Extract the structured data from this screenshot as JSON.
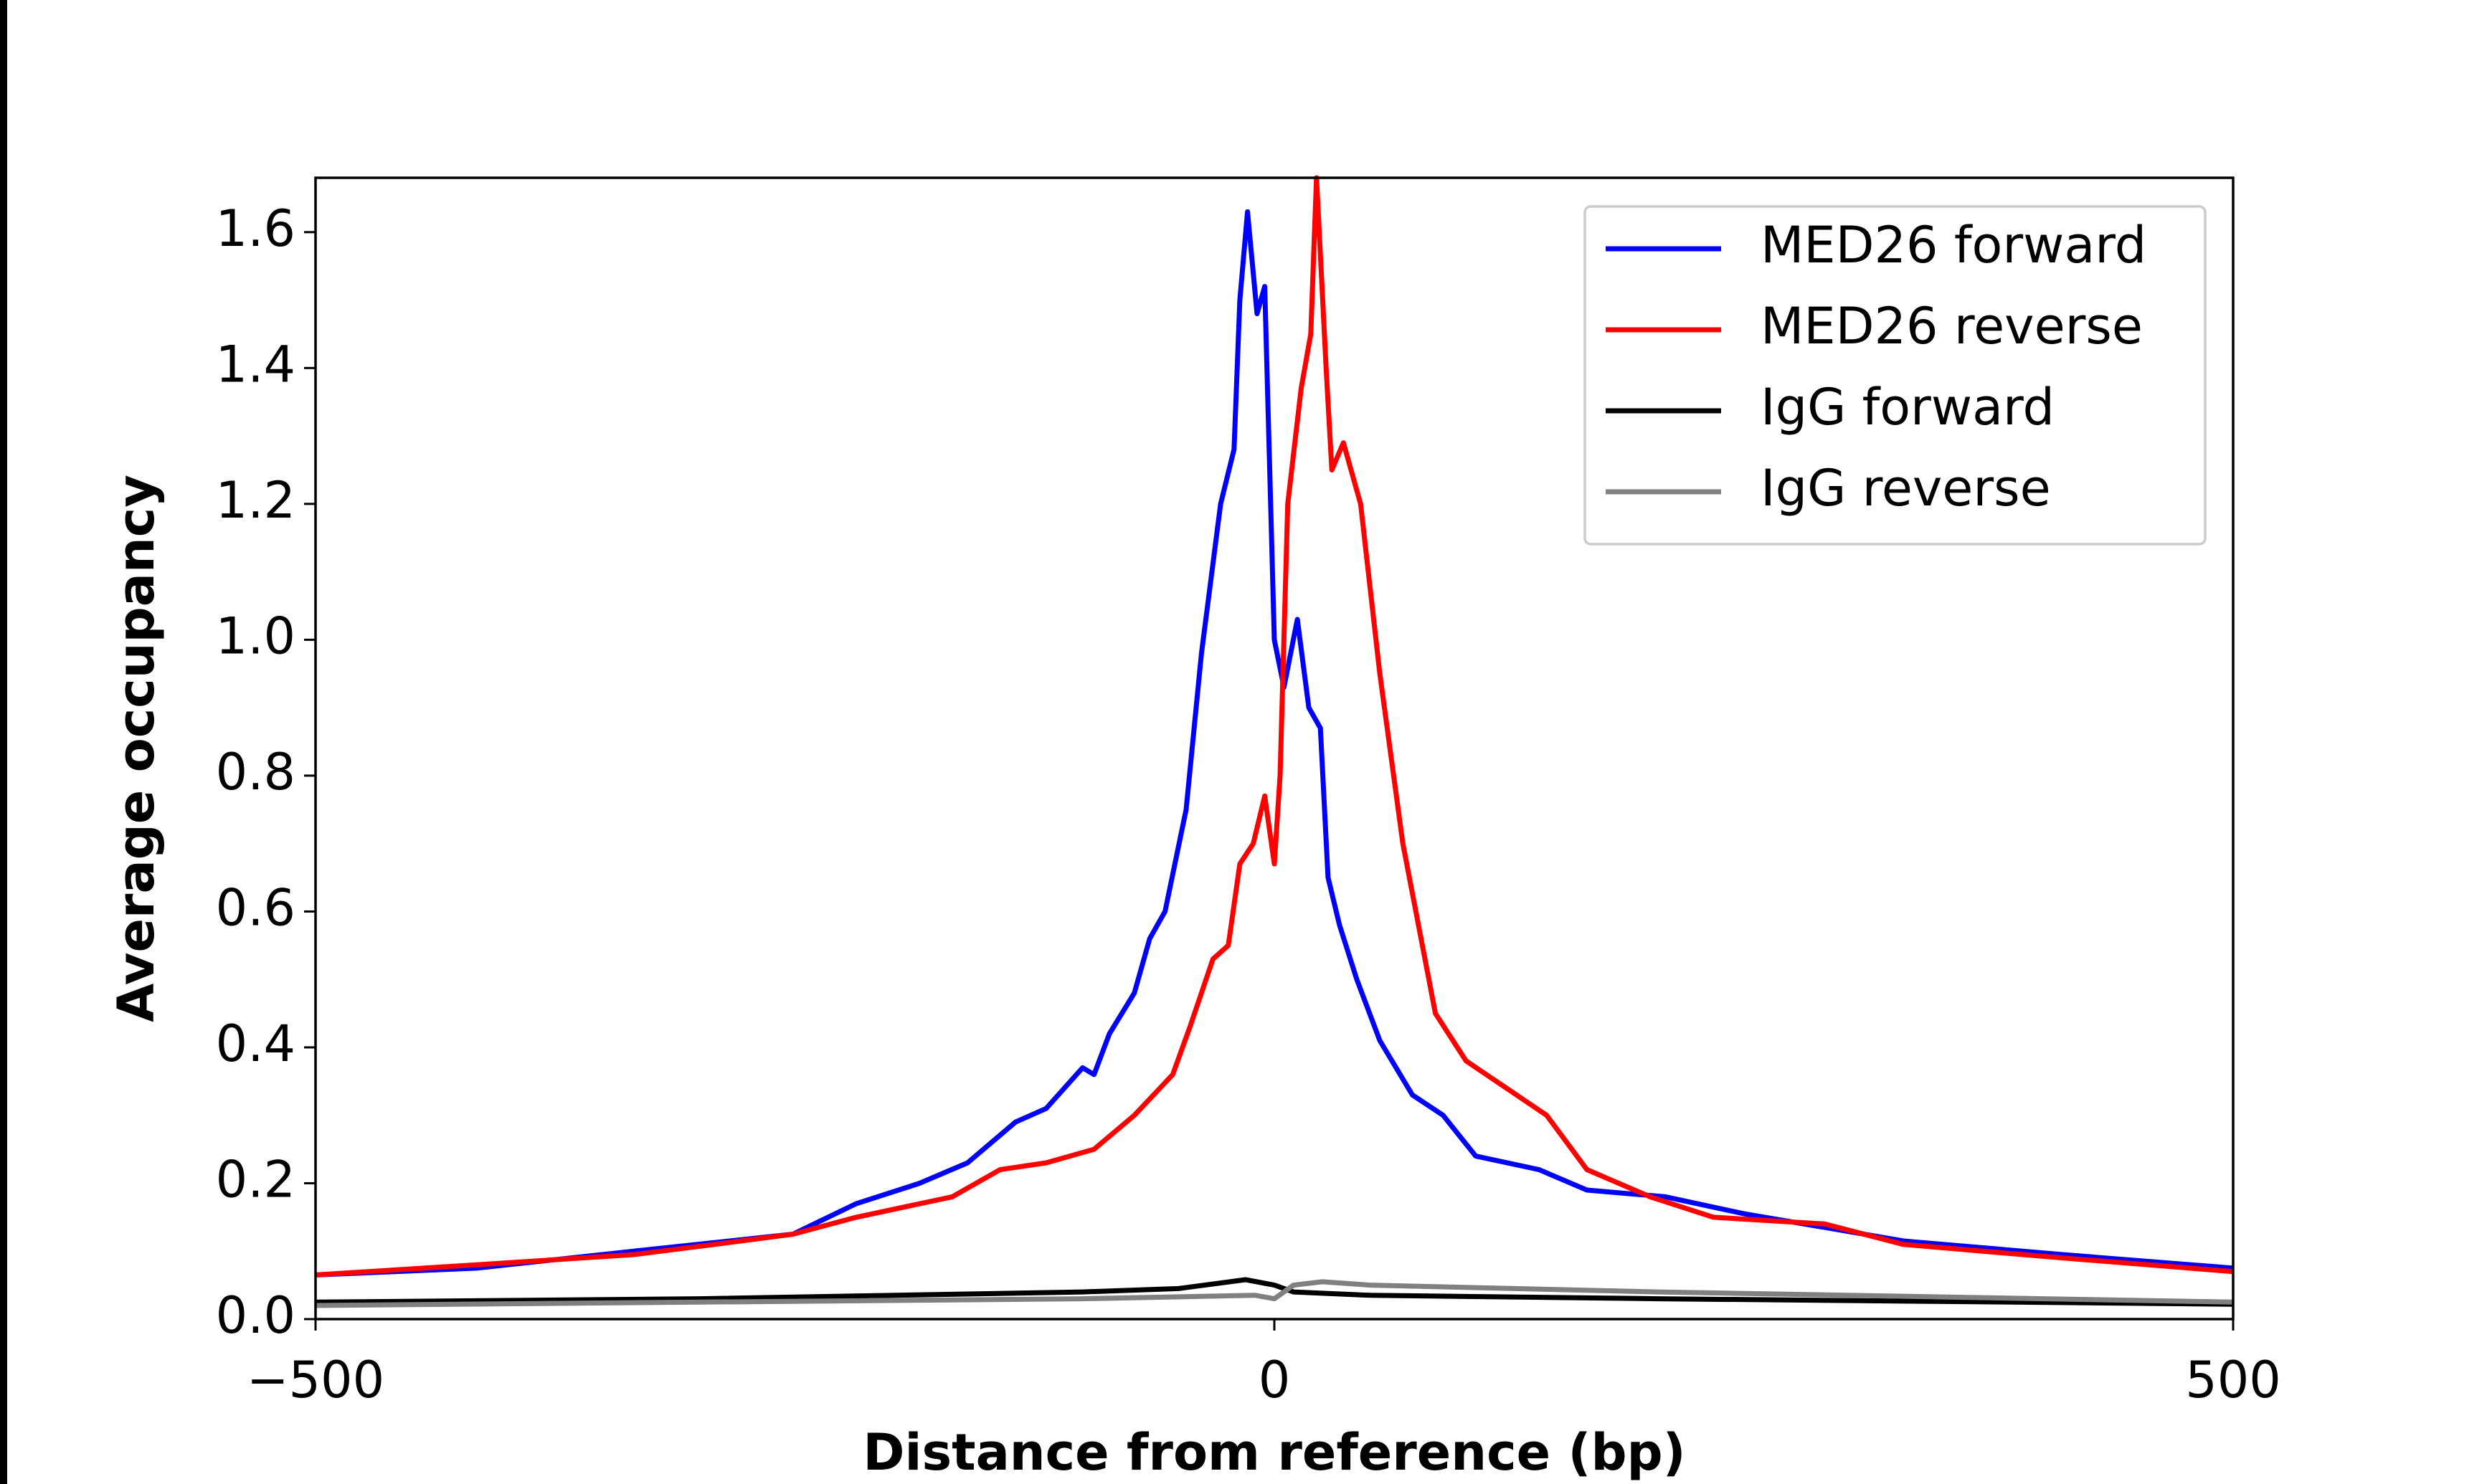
{
  "chart_data": {
    "type": "line",
    "xlabel": "Distance from reference (bp)",
    "ylabel": "Average occupancy",
    "xlim": [
      -500,
      500
    ],
    "ylim": [
      0,
      1.68
    ],
    "xticks": [
      {
        "value": -500,
        "label": "−500"
      },
      0,
      500
    ],
    "yticks": [
      {
        "value": 0,
        "label": "0.0"
      },
      {
        "value": 0.2,
        "label": "0.2"
      },
      {
        "value": 0.4,
        "label": "0.4"
      },
      {
        "value": 0.6,
        "label": "0.6"
      },
      {
        "value": 0.8,
        "label": "0.8"
      },
      {
        "value": 1.0,
        "label": "1.0"
      },
      {
        "value": 1.2,
        "label": "1.2"
      },
      {
        "value": 1.4,
        "label": "1.4"
      },
      {
        "value": 1.6,
        "label": "1.6"
      }
    ],
    "legend": "upper right",
    "series": [
      {
        "name": "MED26 forward",
        "color": "#0000ff",
        "x": [
          -500,
          -416,
          -334,
          -251,
          -218,
          -185,
          -160,
          -135,
          -119,
          -100,
          -94,
          -86,
          -73,
          -65,
          -57,
          -46,
          -38,
          -28,
          -21,
          -18,
          -14,
          -9,
          -5,
          0,
          5,
          12,
          18,
          24,
          28,
          34,
          43,
          55,
          72,
          88,
          105,
          138,
          163,
          204,
          245,
          287,
          328,
          411,
          500
        ],
        "values": [
          0.065,
          0.075,
          0.1,
          0.125,
          0.17,
          0.2,
          0.23,
          0.29,
          0.31,
          0.37,
          0.36,
          0.42,
          0.48,
          0.56,
          0.6,
          0.75,
          0.98,
          1.2,
          1.28,
          1.5,
          1.63,
          1.48,
          1.52,
          1.0,
          0.93,
          1.03,
          0.9,
          0.87,
          0.65,
          0.58,
          0.5,
          0.41,
          0.33,
          0.3,
          0.24,
          0.22,
          0.19,
          0.18,
          0.155,
          0.135,
          0.115,
          0.095,
          0.075
        ]
      },
      {
        "name": "MED26 reverse",
        "color": "#ff0000",
        "x": [
          -500,
          -416,
          -334,
          -292,
          -251,
          -218,
          -168,
          -143,
          -119,
          -94,
          -73,
          -53,
          -44,
          -32,
          -24,
          -18,
          -11,
          -5,
          0,
          3,
          7,
          14,
          19,
          22,
          27,
          30,
          36,
          45,
          55,
          67,
          84,
          100,
          121,
          142,
          163,
          196,
          229,
          287,
          328,
          411,
          500
        ],
        "values": [
          0.065,
          0.08,
          0.095,
          0.11,
          0.125,
          0.15,
          0.18,
          0.22,
          0.23,
          0.25,
          0.3,
          0.36,
          0.43,
          0.53,
          0.55,
          0.67,
          0.7,
          0.77,
          0.67,
          0.8,
          1.2,
          1.37,
          1.45,
          1.68,
          1.4,
          1.25,
          1.29,
          1.2,
          0.95,
          0.7,
          0.45,
          0.38,
          0.34,
          0.3,
          0.22,
          0.18,
          0.15,
          0.14,
          0.11,
          0.09,
          0.07
        ]
      },
      {
        "name": "IgG forward",
        "color": "#000000",
        "x": [
          -500,
          -300,
          -100,
          -50,
          -15,
          0,
          10,
          50,
          200,
          500
        ],
        "values": [
          0.025,
          0.03,
          0.04,
          0.045,
          0.058,
          0.05,
          0.04,
          0.035,
          0.03,
          0.022
        ]
      },
      {
        "name": "IgG reverse",
        "color": "#808080",
        "x": [
          -500,
          -300,
          -100,
          -10,
          0,
          10,
          25,
          50,
          200,
          500
        ],
        "values": [
          0.02,
          0.025,
          0.03,
          0.035,
          0.03,
          0.05,
          0.055,
          0.05,
          0.04,
          0.025
        ]
      }
    ]
  }
}
